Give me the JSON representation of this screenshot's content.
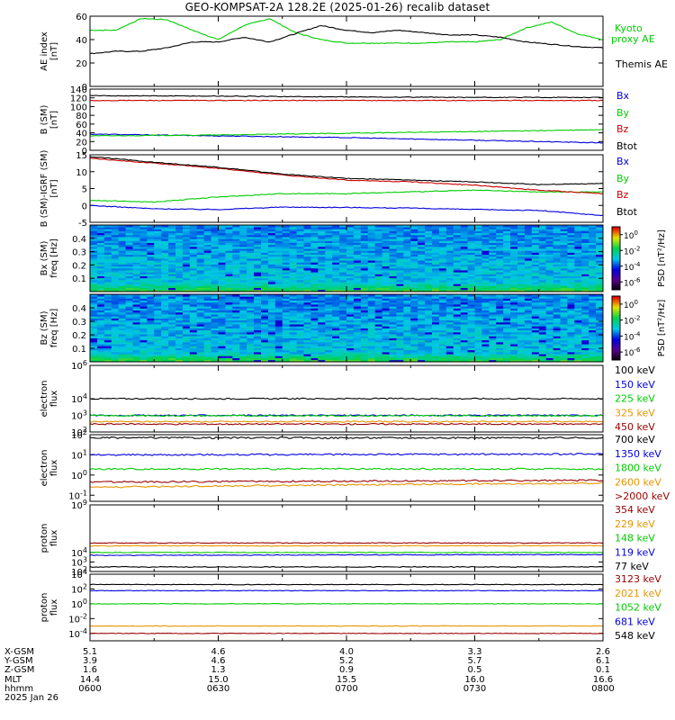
{
  "title": "GEO-KOMPSAT-2A 128.2E (2025-01-26) recalib dataset",
  "colors": {
    "black": "#000000",
    "green": "#00cc00",
    "red": "#cc0000",
    "blue": "#0000dd",
    "orange": "#e69500",
    "darkred": "#990000"
  },
  "chart_data": [
    {
      "type": "line",
      "id": "ae",
      "ylabel": "AE index [nT]",
      "ylim": [
        0,
        60
      ],
      "yticks": [
        0,
        20,
        40,
        60
      ],
      "x_range": [
        6.0,
        8.0
      ],
      "series": [
        {
          "name": "Kyoto proxy AE",
          "color": "#00cc00",
          "x": [
            6.0,
            6.1,
            6.2,
            6.3,
            6.4,
            6.5,
            6.6,
            6.7,
            6.8,
            6.9,
            7.0,
            7.1,
            7.2,
            7.3,
            7.4,
            7.5,
            7.6,
            7.7,
            7.8,
            7.9,
            8.0
          ],
          "y": [
            48,
            48,
            58,
            57,
            48,
            40,
            52,
            58,
            46,
            40,
            37,
            37,
            37,
            37,
            38,
            38,
            40,
            50,
            55,
            45,
            40
          ]
        },
        {
          "name": "Themis AE",
          "color": "#000000",
          "x": [
            6.0,
            6.1,
            6.2,
            6.3,
            6.4,
            6.5,
            6.6,
            6.7,
            6.8,
            6.9,
            7.0,
            7.1,
            7.2,
            7.3,
            7.4,
            7.5,
            7.6,
            7.7,
            7.8,
            7.9,
            8.0
          ],
          "y": [
            28,
            30,
            30,
            33,
            38,
            38,
            42,
            38,
            45,
            52,
            48,
            46,
            48,
            46,
            44,
            44,
            42,
            38,
            36,
            34,
            33
          ]
        }
      ]
    },
    {
      "type": "line",
      "id": "b",
      "ylabel": "B (SM) [nT]",
      "ylim": [
        0,
        140
      ],
      "yticks": [
        0,
        20,
        40,
        60,
        80,
        100,
        120,
        140
      ],
      "series": [
        {
          "name": "Bx",
          "color": "#0000dd",
          "x": [
            6.0,
            6.5,
            7.0,
            7.5,
            8.0
          ],
          "y": [
            37,
            33,
            29,
            23,
            17
          ]
        },
        {
          "name": "By",
          "color": "#00cc00",
          "x": [
            6.0,
            6.5,
            7.0,
            7.5,
            8.0
          ],
          "y": [
            33,
            35,
            39,
            43,
            47
          ]
        },
        {
          "name": "Bz",
          "color": "#cc0000",
          "x": [
            6.0,
            6.5,
            7.0,
            7.5,
            8.0
          ],
          "y": [
            114,
            114,
            114,
            114,
            114
          ]
        },
        {
          "name": "Btot",
          "color": "#000000",
          "x": [
            6.0,
            6.5,
            7.0,
            7.5,
            8.0
          ],
          "y": [
            125,
            124,
            122,
            121,
            121
          ]
        }
      ]
    },
    {
      "type": "line",
      "id": "db",
      "ylabel": "B (SM)-IGRF (SM) [nT]",
      "ylim": [
        -5,
        15
      ],
      "yticks": [
        -5,
        0,
        5,
        10,
        15
      ],
      "series": [
        {
          "name": "Bx",
          "color": "#0000dd",
          "x": [
            6.0,
            6.25,
            6.5,
            6.75,
            7.0,
            7.25,
            7.5,
            7.75,
            8.0
          ],
          "y": [
            0,
            -1,
            -1.2,
            -0.5,
            -0.6,
            -0.8,
            -1.2,
            -1.5,
            -3
          ]
        },
        {
          "name": "By",
          "color": "#00cc00",
          "x": [
            6.0,
            6.25,
            6.5,
            6.75,
            7.0,
            7.25,
            7.5,
            7.75,
            8.0
          ],
          "y": [
            1.5,
            1.0,
            2.5,
            3.5,
            3.5,
            4.0,
            4.5,
            4.0,
            4.0
          ]
        },
        {
          "name": "Bz",
          "color": "#cc0000",
          "x": [
            6.0,
            6.25,
            6.5,
            6.75,
            7.0,
            7.25,
            7.5,
            7.75,
            8.0
          ],
          "y": [
            14,
            12.5,
            11,
            9,
            7.5,
            7,
            6,
            4.5,
            3.5
          ]
        },
        {
          "name": "Btot",
          "color": "#000000",
          "x": [
            6.0,
            6.25,
            6.5,
            6.75,
            7.0,
            7.25,
            7.5,
            7.75,
            8.0
          ],
          "y": [
            14.5,
            12.8,
            11.3,
            9.3,
            8,
            7.5,
            7,
            6.2,
            6.5
          ]
        }
      ]
    },
    {
      "type": "heatmap",
      "id": "bx_spec",
      "ylabel": "Bx (SM) freq [Hz]",
      "ylim": [
        0,
        0.5
      ],
      "yticks": [
        0.1,
        0.2,
        0.3,
        0.4
      ],
      "colorbar_label": "PSD [nT^2/Hz]",
      "colorbar_ticks": [
        "10^0",
        "10^-2",
        "10^-4",
        "10^-6"
      ],
      "colorbar_range": [
        -7,
        1
      ]
    },
    {
      "type": "heatmap",
      "id": "bz_spec",
      "ylabel": "Bz (SM) freq [Hz]",
      "ylim": [
        0,
        0.5
      ],
      "yticks": [
        0.1,
        0.2,
        0.3,
        0.4
      ],
      "colorbar_label": "PSD [nT^2/Hz]",
      "colorbar_ticks": [
        "10^0",
        "10^-2",
        "10^-4",
        "10^-6"
      ],
      "colorbar_range": [
        -7,
        1
      ]
    },
    {
      "type": "line",
      "id": "e_low",
      "scale": "log",
      "ylabel": "electron flux",
      "ylim": [
        100,
        1000000
      ],
      "yticks": [
        "10^2",
        "10^3",
        "10^4",
        "10^6"
      ],
      "series": [
        {
          "name": "100 keV",
          "color": "#000000",
          "x": [
            6.0,
            8.0
          ],
          "y": [
            10000,
            10000
          ]
        },
        {
          "name": "150 keV",
          "color": "#0000dd",
          "x": [
            6.0,
            8.0
          ],
          "y": [
            1000,
            1000
          ]
        },
        {
          "name": "225 keV",
          "color": "#00cc00",
          "x": [
            6.0,
            8.0
          ],
          "y": [
            950,
            950
          ]
        },
        {
          "name": "325 keV",
          "color": "#e69500",
          "x": [
            6.0,
            8.0
          ],
          "y": [
            420,
            420
          ]
        },
        {
          "name": "450 keV",
          "color": "#990000",
          "x": [
            6.0,
            8.0
          ],
          "y": [
            300,
            300
          ]
        }
      ]
    },
    {
      "type": "line",
      "id": "e_high",
      "scale": "log",
      "ylabel": "electron flux",
      "ylim": [
        0.05,
        100
      ],
      "yticks": [
        "10^-1",
        "10^0",
        "10^1",
        "10^2"
      ],
      "series": [
        {
          "name": "700 keV",
          "color": "#000000",
          "x": [
            6.0,
            8.0
          ],
          "y": [
            70,
            70
          ]
        },
        {
          "name": "1350 keV",
          "color": "#0000dd",
          "x": [
            6.0,
            8.0
          ],
          "y": [
            10,
            11
          ]
        },
        {
          "name": "1800 keV",
          "color": "#00cc00",
          "x": [
            6.0,
            8.0
          ],
          "y": [
            2,
            2
          ]
        },
        {
          "name": "2600 keV",
          "color": "#e69500",
          "x": [
            6.0,
            8.0
          ],
          "y": [
            0.25,
            0.4
          ]
        },
        {
          "name": ">2000 keV",
          "color": "#990000",
          "x": [
            6.0,
            8.0
          ],
          "y": [
            0.45,
            0.55
          ]
        }
      ]
    },
    {
      "type": "line",
      "id": "p_high",
      "scale": "log",
      "ylabel": "proton flux",
      "ylim": [
        100,
        1000000000
      ],
      "yticks": [
        "10^2",
        "10^3",
        "10^4",
        "10^9"
      ],
      "series": [
        {
          "name": "354 keV",
          "color": "#990000",
          "x": [
            6.0,
            8.0
          ],
          "y": [
            100000,
            100000
          ]
        },
        {
          "name": "229 keV",
          "color": "#e69500",
          "x": [
            6.0,
            8.0
          ],
          "y": [
            50000,
            50000
          ]
        },
        {
          "name": "148 keV",
          "color": "#00cc00",
          "x": [
            6.0,
            8.0
          ],
          "y": [
            10000,
            10000
          ]
        },
        {
          "name": "119 keV",
          "color": "#0000dd",
          "x": [
            6.0,
            8.0
          ],
          "y": [
            5000,
            6000
          ]
        },
        {
          "name": "77 keV",
          "color": "#000000",
          "x": [
            6.0,
            8.0
          ],
          "y": [
            300,
            300
          ]
        }
      ]
    },
    {
      "type": "line",
      "id": "p_low",
      "scale": "log",
      "ylabel": "proton flux",
      "ylim": [
        1e-05,
        10000
      ],
      "yticks": [
        "10^-4",
        "10^-2",
        "10^0",
        "10^2",
        "10^4"
      ],
      "series": [
        {
          "name": "3123 keV",
          "color": "#990000",
          "x": [
            6.0,
            8.0
          ],
          "y": [
            0.0001,
            0.0001
          ]
        },
        {
          "name": "2021 keV",
          "color": "#e69500",
          "x": [
            6.0,
            8.0
          ],
          "y": [
            0.001,
            0.001
          ]
        },
        {
          "name": "1052 keV",
          "color": "#00cc00",
          "x": [
            6.0,
            8.0
          ],
          "y": [
            1,
            1
          ]
        },
        {
          "name": "681 keV",
          "color": "#0000dd",
          "x": [
            6.0,
            8.0
          ],
          "y": [
            60,
            60
          ]
        },
        {
          "name": "548 keV",
          "color": "#000000",
          "x": [
            6.0,
            8.0
          ],
          "y": [
            400,
            400
          ]
        }
      ]
    }
  ],
  "ephemeris": {
    "labels": [
      "X-GSM",
      "Y-GSM",
      "Z-GSM",
      "MLT",
      "hhmm",
      "2025 Jan 26"
    ],
    "columns": [
      {
        "values": [
          "5.1",
          "3.9",
          "1.6",
          "14.4",
          "0600"
        ]
      },
      {
        "values": [
          "4.6",
          "4.6",
          "1.3",
          "15.0",
          "0630"
        ]
      },
      {
        "values": [
          "4.0",
          "5.2",
          "0.9",
          "15.5",
          "0700"
        ]
      },
      {
        "values": [
          "3.3",
          "5.7",
          "0.5",
          "16.0",
          "0730"
        ]
      },
      {
        "values": [
          "2.6",
          "6.1",
          "0.1",
          "16.6",
          "0800"
        ]
      }
    ]
  }
}
